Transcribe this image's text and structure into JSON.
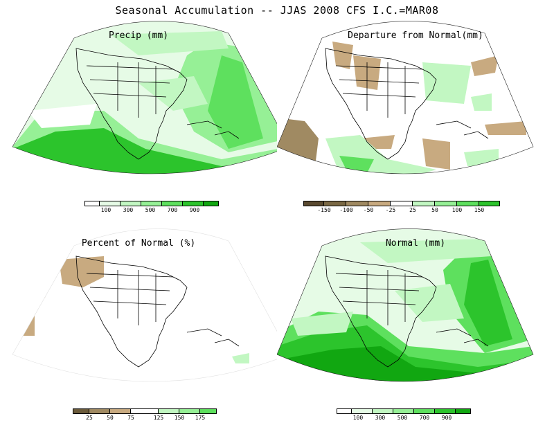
{
  "title": "Seasonal Accumulation -- JJAS 2008 CFS I.C.=MAR08",
  "panels": [
    {
      "id": "precip",
      "title": "Precip (mm)",
      "legend_labels": [
        "100",
        "300",
        "500",
        "700",
        "900"
      ],
      "legend_colors": [
        "#ffffff",
        "#e6fbe6",
        "#c2f7c2",
        "#96f096",
        "#5ee05e",
        "#2cc42c",
        "#11a711"
      ]
    },
    {
      "id": "departure",
      "title": "Departure from Normal(mm)",
      "legend_labels": [
        "-150",
        "-100",
        "-50",
        "-25",
        "25",
        "50",
        "100",
        "150"
      ],
      "legend_colors": [
        "#5a4a30",
        "#7a6844",
        "#a08a62",
        "#c8aa80",
        "#ffffff",
        "#c2f7c2",
        "#96f096",
        "#5ee05e",
        "#2cc42c"
      ]
    },
    {
      "id": "percent",
      "title": "Percent of Normal (%)",
      "legend_labels": [
        "25",
        "50",
        "75",
        "125",
        "150",
        "175"
      ],
      "legend_colors": [
        "#6a5a3a",
        "#a08a62",
        "#c8aa80",
        "#ffffff",
        "#c2f7c2",
        "#96f096",
        "#5ee05e"
      ]
    },
    {
      "id": "normal",
      "title": "Normal (mm)",
      "legend_labels": [
        "100",
        "300",
        "500",
        "700",
        "900"
      ],
      "legend_colors": [
        "#ffffff",
        "#e6fbe6",
        "#c2f7c2",
        "#96f096",
        "#5ee05e",
        "#2cc42c",
        "#11a711"
      ]
    }
  ]
}
